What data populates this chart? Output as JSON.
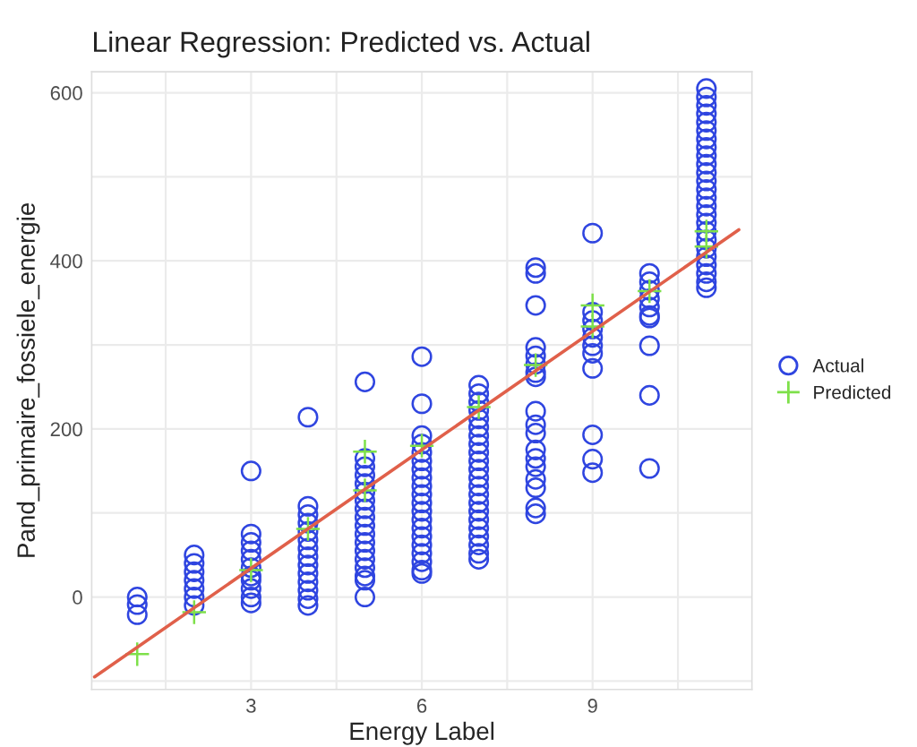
{
  "chart_data": {
    "type": "scatter",
    "title": "Linear Regression: Predicted vs. Actual",
    "xlabel": "Energy Label",
    "ylabel": "Pand_primaire_fossiele_energie",
    "xlim": [
      0.2,
      11.8
    ],
    "ylim": [
      -110,
      625
    ],
    "xticks": [
      {
        "value": 1.5,
        "label": null
      },
      3,
      {
        "value": 4.5,
        "label": null
      },
      6,
      {
        "value": 7.5,
        "label": null
      },
      9,
      {
        "value": 10.5,
        "label": null
      }
    ],
    "yticks": [
      {
        "value": -100,
        "label": null
      },
      0,
      {
        "value": 100,
        "label": null
      },
      200,
      {
        "value": 300,
        "label": null
      },
      400,
      {
        "value": 500,
        "label": null
      },
      600
    ],
    "grid": true,
    "legend": "right",
    "series": [
      {
        "name": "Actual",
        "marker": "circle",
        "color": "#2f45e0",
        "x": [
          1,
          1,
          1,
          2,
          2,
          2,
          2,
          2,
          2,
          2,
          3,
          3,
          3,
          3,
          3,
          3,
          3,
          3,
          3,
          3,
          3,
          4,
          4,
          4,
          4,
          4,
          4,
          4,
          4,
          4,
          4,
          4,
          4,
          4,
          4,
          5,
          5,
          5,
          5,
          5,
          5,
          5,
          5,
          5,
          5,
          5,
          5,
          5,
          5,
          5,
          5,
          5,
          5,
          6,
          6,
          6,
          6,
          6,
          6,
          6,
          6,
          6,
          6,
          6,
          6,
          6,
          6,
          6,
          6,
          6,
          6,
          6,
          6,
          7,
          7,
          7,
          7,
          7,
          7,
          7,
          7,
          7,
          7,
          7,
          7,
          7,
          7,
          7,
          7,
          7,
          7,
          7,
          7,
          7,
          7,
          8,
          8,
          8,
          8,
          8,
          8,
          8,
          8,
          8,
          8,
          8,
          8,
          8,
          8,
          8,
          8,
          8,
          8,
          9,
          9,
          9,
          9,
          9,
          9,
          9,
          9,
          9,
          9,
          9,
          10,
          10,
          10,
          10,
          10,
          10,
          10,
          10,
          10,
          10,
          11,
          11,
          11,
          11,
          11,
          11,
          11,
          11,
          11,
          11,
          11,
          11,
          11,
          11,
          11,
          11,
          11,
          11,
          11,
          11,
          11,
          11,
          11,
          11,
          11
        ],
        "values": [
          0,
          -9,
          -21,
          -10,
          0,
          10,
          20,
          30,
          40,
          50,
          150,
          75,
          65,
          55,
          45,
          35,
          25,
          20,
          10,
          0,
          -7,
          214,
          108,
          98,
          88,
          78,
          68,
          58,
          48,
          38,
          28,
          18,
          8,
          -2,
          -10,
          256,
          165,
          155,
          145,
          135,
          125,
          115,
          105,
          95,
          85,
          75,
          65,
          55,
          45,
          35,
          25,
          20,
          0,
          286,
          230,
          192,
          182,
          172,
          162,
          152,
          142,
          132,
          122,
          112,
          102,
          92,
          82,
          72,
          62,
          52,
          42,
          32,
          28,
          252,
          242,
          232,
          222,
          212,
          202,
          192,
          182,
          172,
          162,
          152,
          142,
          132,
          122,
          112,
          102,
          92,
          82,
          72,
          62,
          52,
          45,
          392,
          385,
          347,
          297,
          287,
          277,
          267,
          262,
          221,
          205,
          195,
          175,
          165,
          155,
          140,
          130,
          106,
          99,
          433,
          339,
          329,
          319,
          309,
          299,
          290,
          272,
          193,
          164,
          148,
          385,
          375,
          365,
          355,
          345,
          335,
          332,
          299,
          240,
          153,
          605,
          595,
          585,
          575,
          565,
          555,
          545,
          535,
          525,
          515,
          505,
          495,
          485,
          475,
          465,
          455,
          445,
          435,
          425,
          415,
          405,
          395,
          385,
          375,
          368
        ]
      },
      {
        "name": "Predicted",
        "marker": "cross",
        "color": "#7ee04a",
        "x": [
          1,
          2,
          3,
          4,
          5,
          5,
          6,
          7,
          8,
          9,
          9,
          10,
          11,
          11
        ],
        "values": [
          -68,
          -18,
          32,
          81,
          127,
          173,
          180,
          226,
          276,
          322,
          347,
          364,
          417,
          435
        ]
      },
      {
        "type": "line",
        "color": "#e0604a",
        "x": [
          0.25,
          11.57
        ],
        "values": [
          -95,
          437
        ]
      }
    ]
  }
}
